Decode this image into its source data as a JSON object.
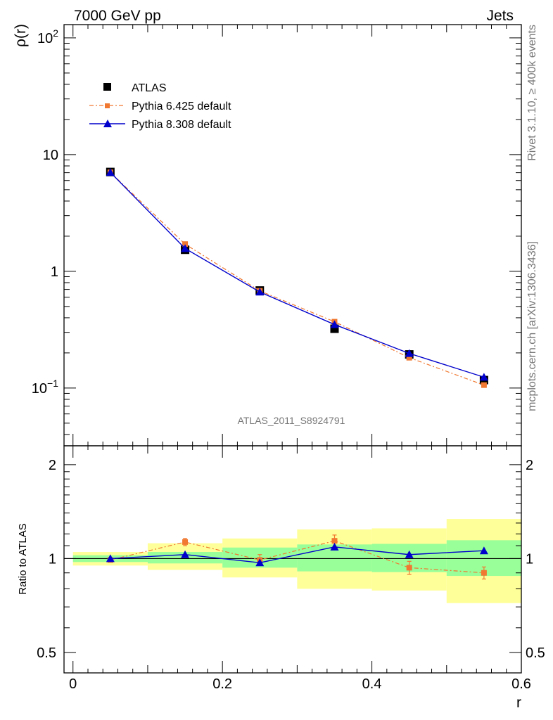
{
  "header": {
    "left": "7000 GeV pp",
    "right": "Jets"
  },
  "side_labels": {
    "rivet": "Rivet 3.1.10, ≥ 400k events",
    "mcplots": "mcplots.cern.ch [arXiv:1306.3436]"
  },
  "analysis_label": "ATLAS_2011_S8924791",
  "colors": {
    "data": "#000000",
    "pythia6": "#f07830",
    "pythia8": "#0000cc",
    "band_inner": "#99ff99",
    "band_outer": "#ffff99"
  },
  "chart_data": [
    {
      "type": "scatter",
      "panel": "main",
      "ylabel": "ρ(r)",
      "xlabel": "",
      "yscale": "log",
      "xlim": [
        -0.012,
        0.6
      ],
      "ylim": [
        0.032,
        130
      ],
      "y_tick_labels": [
        "10^{-1}",
        "1",
        "10",
        "10^{2}"
      ],
      "y_tick_values": [
        0.1,
        1,
        10,
        100
      ],
      "legend_position": "top-left",
      "x": [
        0.05,
        0.15,
        0.25,
        0.35,
        0.45,
        0.55
      ],
      "series": [
        {
          "name": "ATLAS",
          "marker": "square",
          "values": [
            7.1,
            1.53,
            0.685,
            0.322,
            0.194,
            0.117
          ]
        },
        {
          "name": "Pythia 6.425 default",
          "marker": "square-small",
          "line": "dashdot",
          "values": [
            7.05,
            1.71,
            0.68,
            0.37,
            0.182,
            0.106
          ]
        },
        {
          "name": "Pythia 8.308 default",
          "marker": "triangle",
          "line": "solid",
          "values": [
            7.05,
            1.57,
            0.665,
            0.35,
            0.198,
            0.124
          ]
        }
      ]
    },
    {
      "type": "line",
      "panel": "ratio",
      "ylabel": "Ratio to ATLAS",
      "xlabel": "r",
      "xlim": [
        -0.012,
        0.6
      ],
      "ylim": [
        0.43,
        2.3
      ],
      "x_tick_labels": [
        "0",
        "0.2",
        "0.4",
        "0.6"
      ],
      "x_tick_values": [
        0,
        0.2,
        0.4,
        0.6
      ],
      "y_tick_labels": [
        "0.5",
        "1",
        "2"
      ],
      "y_tick_values": [
        0.5,
        1,
        2
      ],
      "bins": [
        {
          "lo": 0.0,
          "hi": 0.1,
          "inner": [
            0.975,
            1.025
          ],
          "outer": [
            0.95,
            1.05
          ]
        },
        {
          "lo": 0.1,
          "hi": 0.2,
          "inner": [
            0.965,
            1.05
          ],
          "outer": [
            0.92,
            1.12
          ]
        },
        {
          "lo": 0.2,
          "hi": 0.3,
          "inner": [
            0.935,
            1.085
          ],
          "outer": [
            0.87,
            1.16
          ]
        },
        {
          "lo": 0.3,
          "hi": 0.4,
          "inner": [
            0.91,
            1.11
          ],
          "outer": [
            0.8,
            1.24
          ]
        },
        {
          "lo": 0.4,
          "hi": 0.5,
          "inner": [
            0.905,
            1.115
          ],
          "outer": [
            0.79,
            1.25
          ]
        },
        {
          "lo": 0.5,
          "hi": 0.6,
          "inner": [
            0.88,
            1.145
          ],
          "outer": [
            0.72,
            1.34
          ]
        }
      ],
      "series": [
        {
          "name": "Pythia 6.425 default",
          "values": [
            0.99,
            1.13,
            0.99,
            1.14,
            0.935,
            0.9
          ],
          "errors": [
            0.0,
            0.03,
            0.04,
            0.05,
            0.045,
            0.04
          ]
        },
        {
          "name": "Pythia 8.308 default",
          "values": [
            1.0,
            1.03,
            0.97,
            1.09,
            1.03,
            1.06
          ],
          "errors": [
            0,
            0,
            0,
            0,
            0,
            0
          ]
        }
      ]
    }
  ]
}
